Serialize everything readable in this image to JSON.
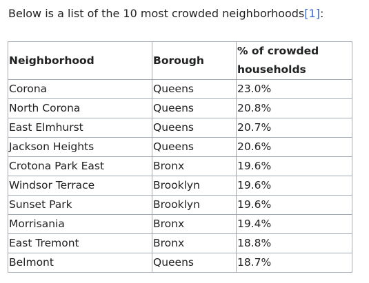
{
  "intro": {
    "text": "Below is a list of the 10 most crowded neighborhoods",
    "ref": "[1]",
    "suffix": ":"
  },
  "table": {
    "headers": {
      "neighborhood": "Neighborhood",
      "borough": "Borough",
      "pct_line1": "% of crowded",
      "pct_line2": "households"
    },
    "rows": [
      {
        "neighborhood": "Corona",
        "borough": "Queens",
        "pct": "23.0%"
      },
      {
        "neighborhood": "North Corona",
        "borough": "Queens",
        "pct": "20.8%"
      },
      {
        "neighborhood": "East Elmhurst",
        "borough": "Queens",
        "pct": "20.7%"
      },
      {
        "neighborhood": "Jackson Heights",
        "borough": "Queens",
        "pct": "20.6%"
      },
      {
        "neighborhood": "Crotona Park East",
        "borough": "Bronx",
        "pct": "19.6%"
      },
      {
        "neighborhood": "Windsor Terrace",
        "borough": "Brooklyn",
        "pct": "19.6%"
      },
      {
        "neighborhood": "Sunset Park",
        "borough": "Brooklyn",
        "pct": "19.6%"
      },
      {
        "neighborhood": "Morrisania",
        "borough": "Bronx",
        "pct": "19.4%"
      },
      {
        "neighborhood": "East Tremont",
        "borough": "Bronx",
        "pct": "18.8%"
      },
      {
        "neighborhood": "Belmont",
        "borough": "Queens",
        "pct": "18.7%"
      }
    ]
  }
}
